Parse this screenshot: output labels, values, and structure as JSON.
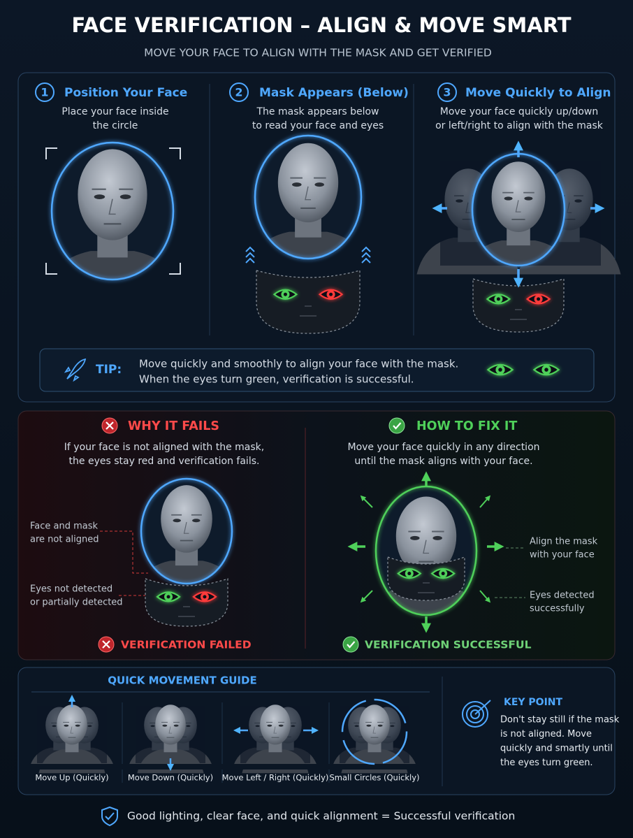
{
  "header": {
    "title": "FACE VERIFICATION – ALIGN & MOVE SMART",
    "subtitle": "MOVE YOUR FACE TO ALIGN WITH THE MASK AND GET VERIFIED"
  },
  "steps": [
    {
      "number": "1",
      "title": "Position Your Face",
      "text": [
        "Place your face inside",
        "the circle"
      ]
    },
    {
      "number": "2",
      "title": "Mask Appears (Below)",
      "text": [
        "The mask appears below",
        "to read your face and eyes"
      ]
    },
    {
      "number": "3",
      "title": "Move Quickly to Align",
      "text": [
        "Move your face quickly up/down",
        "or left/right to align with the mask"
      ]
    }
  ],
  "tip": {
    "label": "TIP:",
    "text": [
      "Move quickly and smoothly to align your face with the mask.",
      "When the eyes turn green, verification is successful."
    ]
  },
  "fails": {
    "title": "WHY IT FAILS",
    "text": [
      "If your face is not aligned with the mask,",
      "the eyes stay red and verification fails."
    ],
    "callouts": [
      [
        "Face and mask",
        "are not aligned"
      ],
      [
        "Eyes not detected",
        "or partially detected"
      ]
    ],
    "status": "VERIFICATION FAILED"
  },
  "fix": {
    "title": "HOW TO FIX IT",
    "text": [
      "Move your face quickly in any direction",
      "until the mask aligns with your face."
    ],
    "callouts": [
      [
        "Align the mask",
        "with your face"
      ],
      [
        "Eyes detected",
        "successfully"
      ]
    ],
    "status": "VERIFICATION SUCCESSFUL"
  },
  "guide": {
    "title": "QUICK MOVEMENT GUIDE",
    "items": [
      "Move Up (Quickly)",
      "Move Down (Quickly)",
      "Move Left / Right (Quickly)",
      "Small Circles (Quickly)"
    ]
  },
  "key_point": {
    "title": "KEY POINT",
    "text": [
      "Don't stay still if the mask",
      "is not aligned. Move",
      "quickly and smartly until",
      "the eyes turn green."
    ]
  },
  "footer": {
    "text": "Good lighting, clear face, and quick alignment = Successful verification"
  }
}
